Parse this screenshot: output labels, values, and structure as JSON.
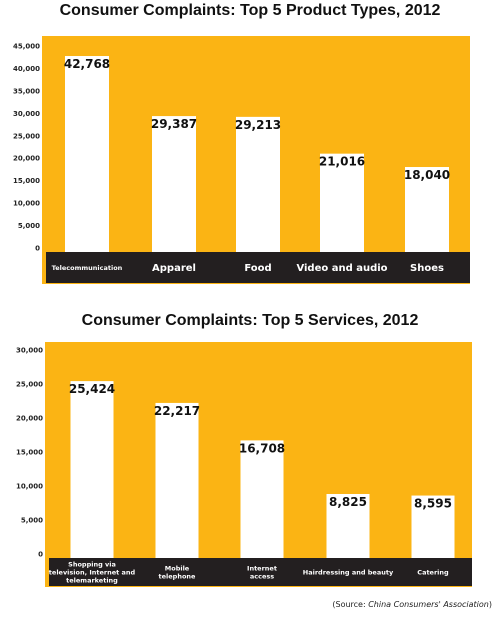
{
  "colors": {
    "background": "#fbb414",
    "bar": "#ffffff",
    "label_strip": "#231f20",
    "label_text": "#ffffff"
  },
  "charts": [
    {
      "title": "Consumer Complaints: Top 5 Product Types, 2012"
    },
    {
      "title": "Consumer Complaints: Top 5 Services, 2012"
    }
  ],
  "chart_data": [
    {
      "type": "bar",
      "title": "Consumer Complaints: Top 5 Product Types, 2012",
      "categories": [
        "Telecommunication",
        "Apparel",
        "Food",
        "Video and audio",
        "Shoes"
      ],
      "values": [
        42768,
        29387,
        29213,
        21016,
        18040
      ],
      "value_labels": [
        "42,768",
        "29,387",
        "29,213",
        "21,016",
        "18,040"
      ],
      "ylim": [
        0,
        45000
      ],
      "yticks": [
        "0",
        "5,000",
        "10,000",
        "15,000",
        "20,000",
        "25,000",
        "30,000",
        "35,000",
        "40,000",
        "45,000"
      ],
      "ytick_values": [
        0,
        5000,
        10000,
        15000,
        20000,
        25000,
        30000,
        35000,
        40000,
        45000
      ],
      "xlabel": "",
      "ylabel": "",
      "grid": false,
      "legend": "none"
    },
    {
      "type": "bar",
      "title": "Consumer Complaints: Top 5 Services, 2012",
      "categories": [
        "Shopping via television, Internet and telemarketing",
        "Mobile telephone",
        "Internet access",
        "Hairdressing and beauty",
        "Catering"
      ],
      "values": [
        25424,
        22217,
        16708,
        8825,
        8595
      ],
      "value_labels": [
        "25,424",
        "22,217",
        "16,708",
        "8,825",
        "8,595"
      ],
      "ylim": [
        0,
        30000
      ],
      "yticks": [
        "0",
        "5,000",
        "10,000",
        "15,000",
        "20,000",
        "25,000",
        "30,000"
      ],
      "ytick_values": [
        0,
        5000,
        10000,
        15000,
        20000,
        25000,
        30000
      ],
      "xlabel": "",
      "ylabel": "",
      "grid": false,
      "legend": "none"
    }
  ],
  "source": {
    "prefix": "(Source: ",
    "name": "China Consumers' Association",
    "suffix": ")"
  }
}
